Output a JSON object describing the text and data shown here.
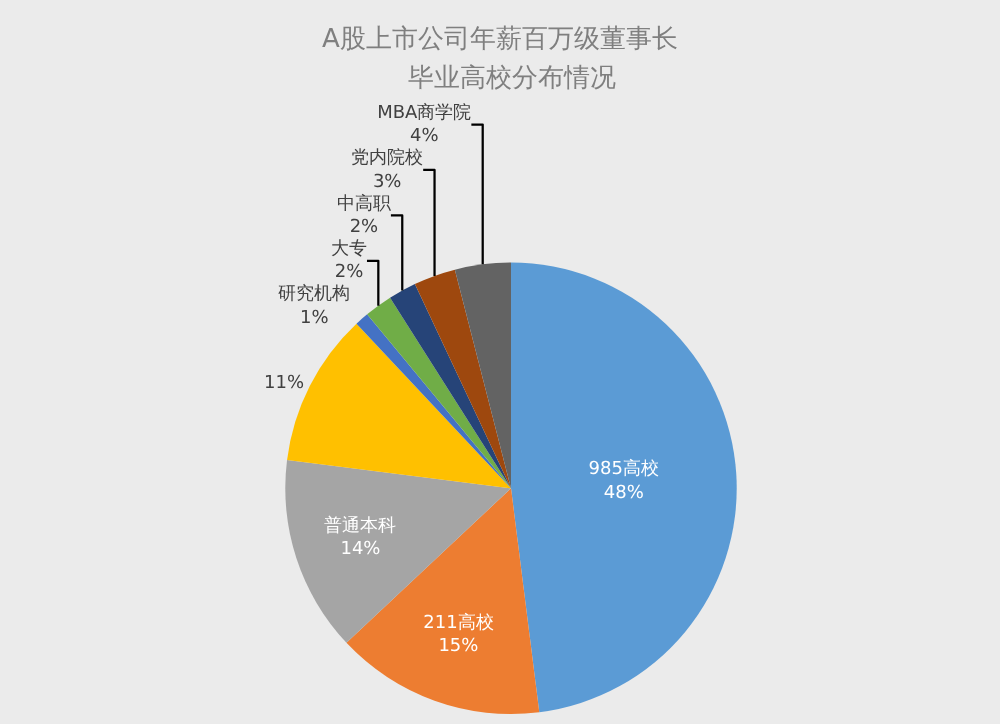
{
  "chart_data": {
    "type": "pie",
    "title": "A股上市公司年薪百万级董事长",
    "subtitle": "毕业高校分布情况",
    "categories": [
      "985高校",
      "211高校",
      "普通本科",
      null,
      "研究机构",
      "大专",
      "中高职",
      "党内院校",
      "MBA商学院"
    ],
    "values": [
      48,
      15,
      14,
      11,
      1,
      2,
      2,
      3,
      4
    ],
    "value_labels": [
      "48%",
      "15%",
      "14%",
      "11%",
      "1%",
      "2%",
      "2%",
      "3%",
      "4%"
    ],
    "colors": [
      "#5b9bd5",
      "#ed7d31",
      "#a5a5a5",
      "#ffc000",
      "#4472c4",
      "#70ad47",
      "#264478",
      "#9e480e",
      "#636363"
    ],
    "legend": false
  }
}
